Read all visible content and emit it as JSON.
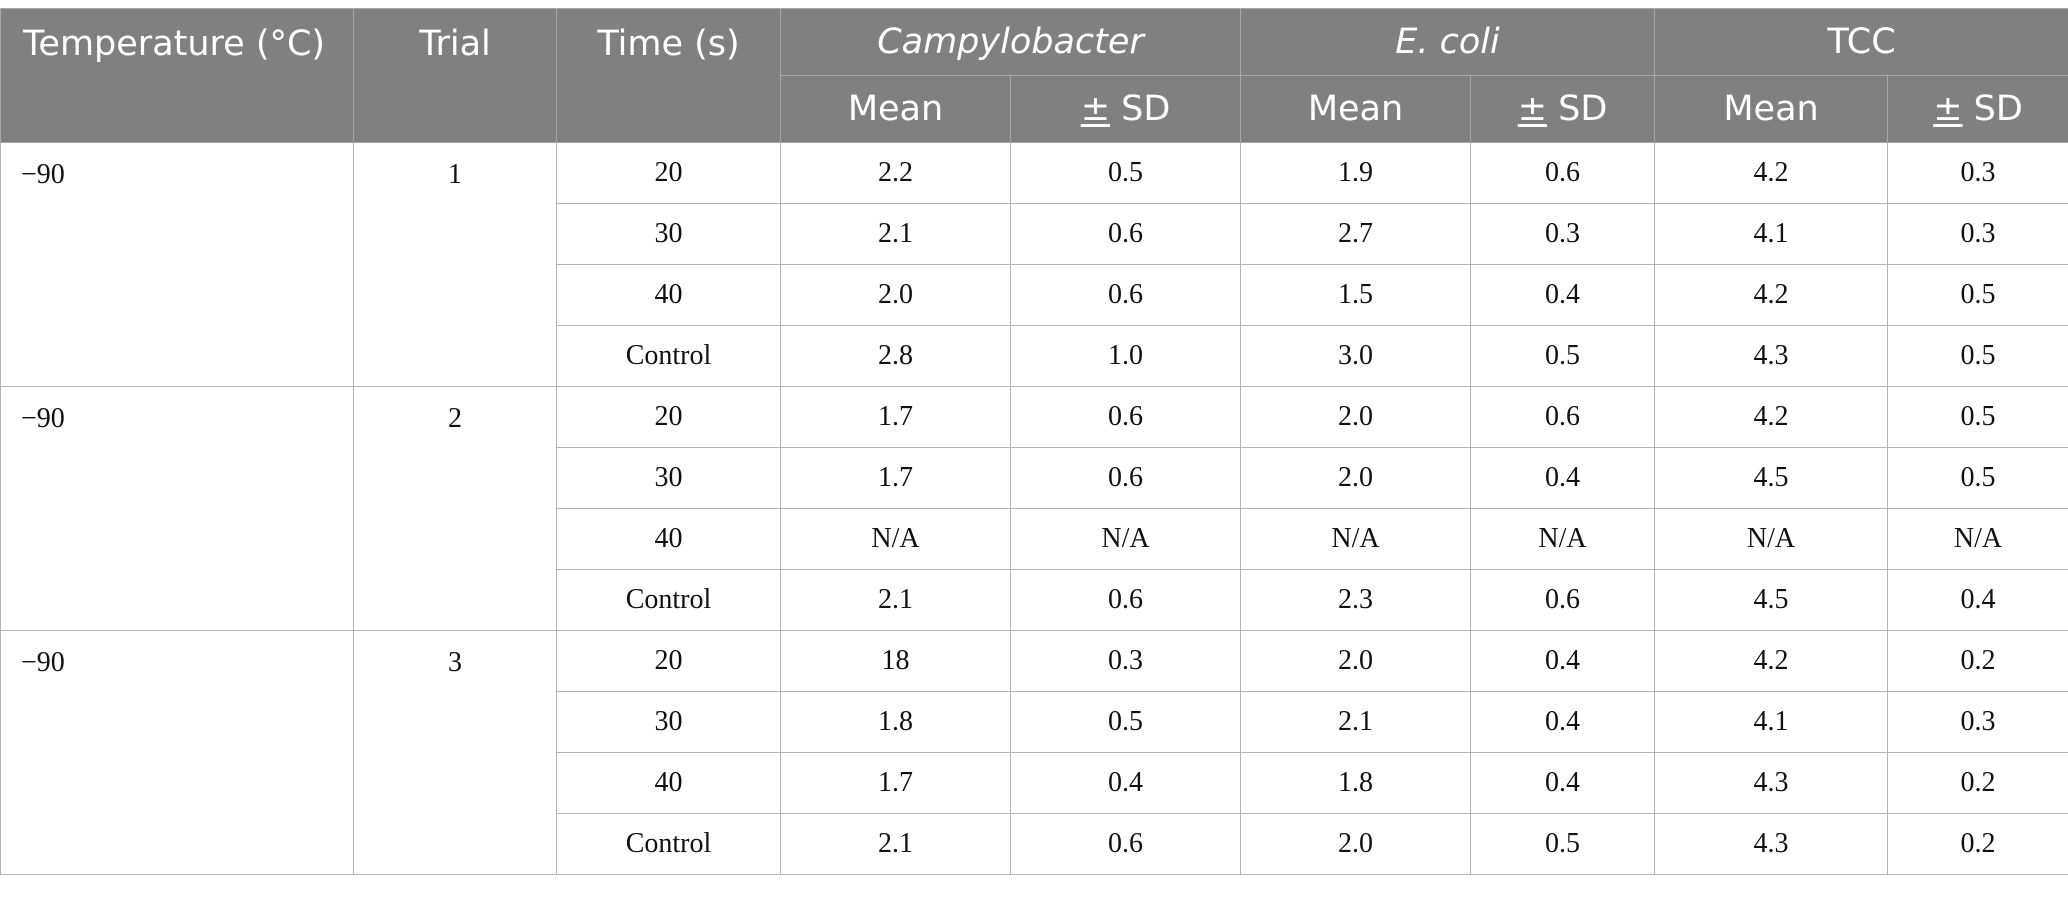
{
  "header": {
    "temperature": "Temperature (°C)",
    "trial": "Trial",
    "time": "Time (s)",
    "groups": [
      "Campylobacter",
      "E. coli",
      "TCC"
    ],
    "mean": "Mean",
    "pm": "±",
    "sd": " SD"
  },
  "rows": [
    {
      "temperature": "−90",
      "trial": "1",
      "times": [
        {
          "time": "20",
          "values": [
            "2.2",
            "0.5",
            "1.9",
            "0.6",
            "4.2",
            "0.3"
          ]
        },
        {
          "time": "30",
          "values": [
            "2.1",
            "0.6",
            "2.7",
            "0.3",
            "4.1",
            "0.3"
          ]
        },
        {
          "time": "40",
          "values": [
            "2.0",
            "0.6",
            "1.5",
            "0.4",
            "4.2",
            "0.5"
          ]
        },
        {
          "time": "Control",
          "values": [
            "2.8",
            "1.0",
            "3.0",
            "0.5",
            "4.3",
            "0.5"
          ]
        }
      ]
    },
    {
      "temperature": "−90",
      "trial": "2",
      "times": [
        {
          "time": "20",
          "values": [
            "1.7",
            "0.6",
            "2.0",
            "0.6",
            "4.2",
            "0.5"
          ]
        },
        {
          "time": "30",
          "values": [
            "1.7",
            "0.6",
            "2.0",
            "0.4",
            "4.5",
            "0.5"
          ]
        },
        {
          "time": "40",
          "values": [
            "N/A",
            "N/A",
            "N/A",
            "N/A",
            "N/A",
            "N/A"
          ]
        },
        {
          "time": "Control",
          "values": [
            "2.1",
            "0.6",
            "2.3",
            "0.6",
            "4.5",
            "0.4"
          ]
        }
      ]
    },
    {
      "temperature": "−90",
      "trial": "3",
      "times": [
        {
          "time": "20",
          "values": [
            "18",
            "0.3",
            "2.0",
            "0.4",
            "4.2",
            "0.2"
          ]
        },
        {
          "time": "30",
          "values": [
            "1.8",
            "0.5",
            "2.1",
            "0.4",
            "4.1",
            "0.3"
          ]
        },
        {
          "time": "40",
          "values": [
            "1.7",
            "0.4",
            "1.8",
            "0.4",
            "4.3",
            "0.2"
          ]
        },
        {
          "time": "Control",
          "values": [
            "2.1",
            "0.6",
            "2.0",
            "0.5",
            "4.3",
            "0.2"
          ]
        }
      ]
    }
  ]
}
